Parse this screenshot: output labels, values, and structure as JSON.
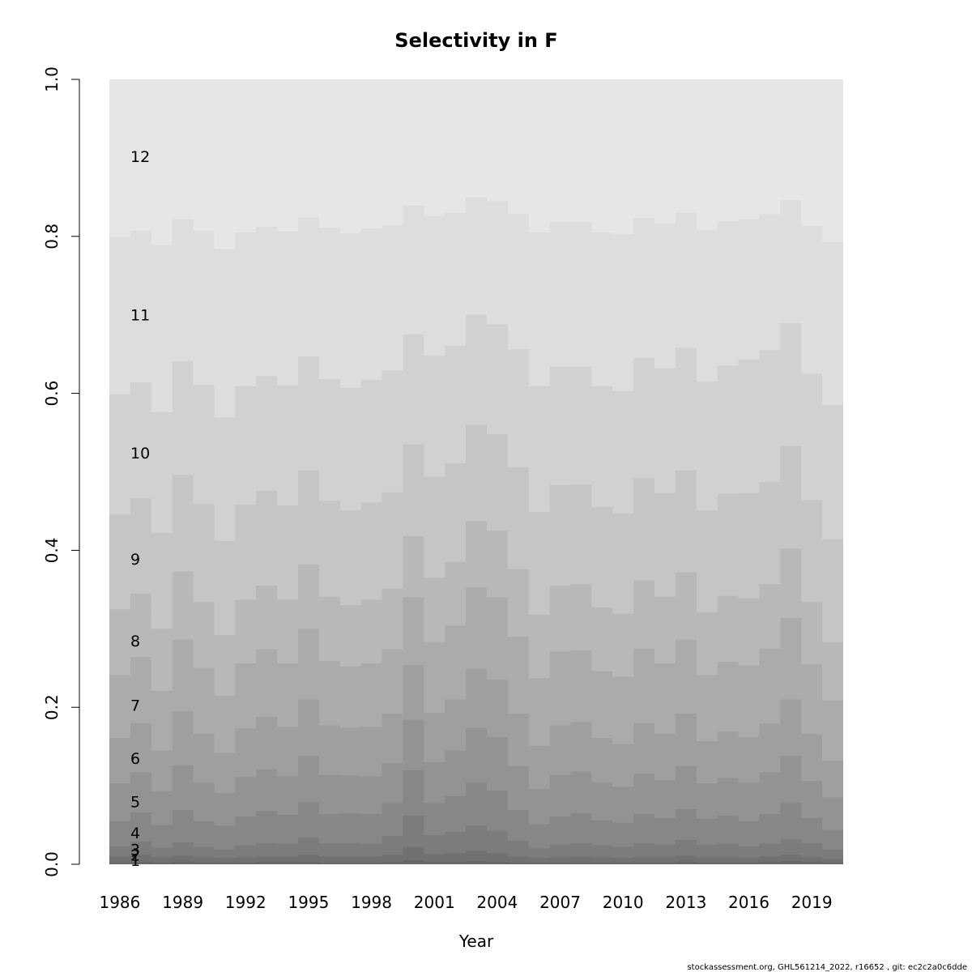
{
  "chart_data": {
    "type": "area",
    "title": "Selectivity in F",
    "xlabel": "Year",
    "ylabel": "",
    "xlim": [
      1985.5,
      2020.5
    ],
    "ylim": [
      0,
      1
    ],
    "x_ticks": [
      1986,
      1989,
      1992,
      1995,
      1998,
      2001,
      2004,
      2007,
      2010,
      2013,
      2016,
      2019
    ],
    "y_ticks": [
      "0.0",
      "0.2",
      "0.4",
      "0.6",
      "0.8",
      "1.0"
    ],
    "years": [
      1986,
      1987,
      1988,
      1989,
      1990,
      1991,
      1992,
      1993,
      1994,
      1995,
      1996,
      1997,
      1998,
      1999,
      2000,
      2001,
      2002,
      2003,
      2004,
      2005,
      2006,
      2007,
      2008,
      2009,
      2010,
      2011,
      2012,
      2013,
      2014,
      2015,
      2016,
      2017,
      2018,
      2019,
      2020
    ],
    "stacking": "cumulative",
    "series": [
      {
        "name": "1",
        "label_y": 0.005,
        "values": [
          0.002,
          0.003,
          0.002,
          0.003,
          0.002,
          0.002,
          0.002,
          0.003,
          0.003,
          0.003,
          0.002,
          0.002,
          0.002,
          0.003,
          0.005,
          0.003,
          0.003,
          0.004,
          0.003,
          0.002,
          0.002,
          0.002,
          0.002,
          0.002,
          0.002,
          0.002,
          0.002,
          0.003,
          0.002,
          0.002,
          0.002,
          0.003,
          0.004,
          0.003,
          0.002
        ]
      },
      {
        "name": "2",
        "label_y": 0.012,
        "values": [
          0.01,
          0.012,
          0.009,
          0.011,
          0.009,
          0.008,
          0.009,
          0.01,
          0.01,
          0.012,
          0.01,
          0.01,
          0.01,
          0.012,
          0.022,
          0.013,
          0.014,
          0.017,
          0.014,
          0.01,
          0.008,
          0.009,
          0.01,
          0.009,
          0.008,
          0.009,
          0.009,
          0.011,
          0.009,
          0.009,
          0.008,
          0.01,
          0.012,
          0.009,
          0.007
        ]
      },
      {
        "name": "3",
        "label_y": 0.019,
        "values": [
          0.023,
          0.029,
          0.021,
          0.028,
          0.022,
          0.019,
          0.024,
          0.027,
          0.026,
          0.034,
          0.027,
          0.027,
          0.026,
          0.036,
          0.062,
          0.037,
          0.041,
          0.049,
          0.042,
          0.03,
          0.02,
          0.025,
          0.027,
          0.024,
          0.022,
          0.027,
          0.025,
          0.031,
          0.025,
          0.026,
          0.023,
          0.026,
          0.032,
          0.027,
          0.019
        ]
      },
      {
        "name": "4",
        "label_y": 0.04,
        "values": [
          0.055,
          0.066,
          0.05,
          0.069,
          0.055,
          0.049,
          0.061,
          0.068,
          0.063,
          0.079,
          0.064,
          0.065,
          0.064,
          0.078,
          0.12,
          0.078,
          0.087,
          0.104,
          0.094,
          0.069,
          0.051,
          0.061,
          0.065,
          0.056,
          0.053,
          0.064,
          0.059,
          0.07,
          0.058,
          0.062,
          0.055,
          0.064,
          0.078,
          0.059,
          0.044
        ]
      },
      {
        "name": "5",
        "label_y": 0.08,
        "values": [
          0.103,
          0.117,
          0.093,
          0.126,
          0.104,
          0.091,
          0.111,
          0.121,
          0.112,
          0.138,
          0.114,
          0.113,
          0.112,
          0.129,
          0.184,
          0.13,
          0.145,
          0.174,
          0.162,
          0.125,
          0.096,
          0.114,
          0.118,
          0.104,
          0.099,
          0.115,
          0.107,
          0.125,
          0.103,
          0.11,
          0.104,
          0.117,
          0.138,
          0.106,
          0.085
        ]
      },
      {
        "name": "6",
        "label_y": 0.135,
        "values": [
          0.161,
          0.18,
          0.145,
          0.195,
          0.166,
          0.142,
          0.173,
          0.188,
          0.175,
          0.21,
          0.177,
          0.174,
          0.175,
          0.192,
          0.254,
          0.193,
          0.21,
          0.249,
          0.235,
          0.192,
          0.151,
          0.177,
          0.181,
          0.161,
          0.153,
          0.18,
          0.166,
          0.192,
          0.157,
          0.169,
          0.162,
          0.179,
          0.21,
          0.166,
          0.132
        ]
      },
      {
        "name": "7",
        "label_y": 0.203,
        "values": [
          0.241,
          0.264,
          0.221,
          0.286,
          0.25,
          0.215,
          0.256,
          0.274,
          0.256,
          0.3,
          0.259,
          0.252,
          0.256,
          0.274,
          0.34,
          0.283,
          0.304,
          0.353,
          0.34,
          0.29,
          0.237,
          0.271,
          0.273,
          0.246,
          0.239,
          0.275,
          0.256,
          0.286,
          0.241,
          0.258,
          0.253,
          0.275,
          0.314,
          0.255,
          0.209
        ]
      },
      {
        "name": "8",
        "label_y": 0.285,
        "values": [
          0.325,
          0.345,
          0.3,
          0.373,
          0.334,
          0.292,
          0.337,
          0.355,
          0.337,
          0.382,
          0.341,
          0.33,
          0.337,
          0.351,
          0.418,
          0.365,
          0.385,
          0.437,
          0.425,
          0.376,
          0.318,
          0.355,
          0.357,
          0.327,
          0.319,
          0.362,
          0.341,
          0.372,
          0.321,
          0.342,
          0.339,
          0.357,
          0.402,
          0.334,
          0.283
        ]
      },
      {
        "name": "9",
        "label_y": 0.389,
        "values": [
          0.446,
          0.466,
          0.422,
          0.496,
          0.459,
          0.412,
          0.458,
          0.476,
          0.457,
          0.502,
          0.463,
          0.451,
          0.461,
          0.474,
          0.535,
          0.494,
          0.511,
          0.56,
          0.548,
          0.506,
          0.449,
          0.483,
          0.484,
          0.455,
          0.447,
          0.492,
          0.473,
          0.502,
          0.451,
          0.472,
          0.473,
          0.487,
          0.533,
          0.464,
          0.414
        ]
      },
      {
        "name": "10",
        "label_y": 0.524,
        "values": [
          0.599,
          0.614,
          0.576,
          0.641,
          0.611,
          0.569,
          0.609,
          0.622,
          0.61,
          0.647,
          0.618,
          0.607,
          0.617,
          0.629,
          0.675,
          0.648,
          0.661,
          0.7,
          0.688,
          0.656,
          0.609,
          0.634,
          0.634,
          0.609,
          0.603,
          0.645,
          0.632,
          0.658,
          0.615,
          0.635,
          0.643,
          0.655,
          0.689,
          0.625,
          0.585
        ]
      },
      {
        "name": "11",
        "label_y": 0.7,
        "values": [
          0.799,
          0.807,
          0.789,
          0.822,
          0.807,
          0.784,
          0.805,
          0.812,
          0.806,
          0.824,
          0.811,
          0.804,
          0.81,
          0.814,
          0.839,
          0.826,
          0.83,
          0.85,
          0.845,
          0.829,
          0.805,
          0.818,
          0.818,
          0.805,
          0.803,
          0.823,
          0.816,
          0.83,
          0.808,
          0.819,
          0.822,
          0.828,
          0.846,
          0.813,
          0.793
        ]
      },
      {
        "name": "12",
        "label_y": 0.902,
        "values": [
          1,
          1,
          1,
          1,
          1,
          1,
          1,
          1,
          1,
          1,
          1,
          1,
          1,
          1,
          1,
          1,
          1,
          1,
          1,
          1,
          1,
          1,
          1,
          1,
          1,
          1,
          1,
          1,
          1,
          1,
          1,
          1,
          1,
          1,
          1
        ]
      }
    ],
    "colors": [
      "#5a5a5a",
      "#666666",
      "#717171",
      "#7c7c7c",
      "#878787",
      "#939393",
      "#9f9f9f",
      "#ababab",
      "#b8b8b8",
      "#c5c5c5",
      "#d1d1d1",
      "#dddddd",
      "#e6e6e6"
    ],
    "grid": false,
    "legend": "none"
  },
  "footer": "stockassessment.org, GHL561214_2022, r16652 , git: ec2c2a0c6dde"
}
